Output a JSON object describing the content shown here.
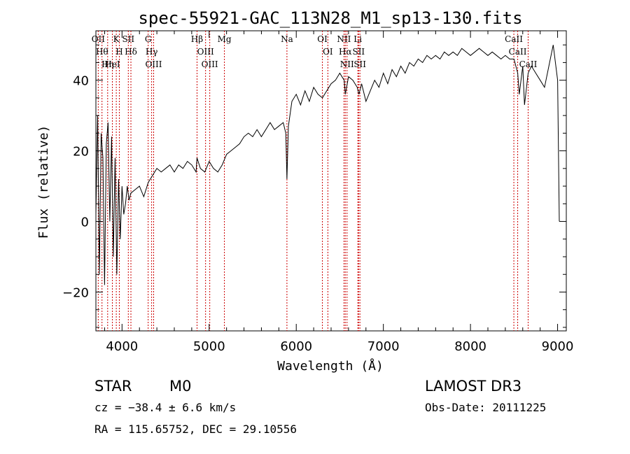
{
  "chart_data": {
    "type": "line",
    "title": "spec-55921-GAC_113N28_M1_sp13-130.fits",
    "xlabel": "Wavelength (Å)",
    "ylabel": "Flux (relative)",
    "xlim": [
      3700,
      9100
    ],
    "ylim": [
      -31,
      54
    ],
    "xticks": [
      4000,
      5000,
      6000,
      7000,
      8000,
      9000
    ],
    "yticks": [
      -20,
      0,
      20,
      40
    ],
    "series": [
      {
        "name": "spectrum",
        "x": [
          3700,
          3720,
          3740,
          3760,
          3780,
          3800,
          3820,
          3840,
          3860,
          3880,
          3900,
          3920,
          3940,
          3960,
          3980,
          4000,
          4020,
          4040,
          4060,
          4080,
          4100,
          4150,
          4200,
          4250,
          4300,
          4350,
          4400,
          4450,
          4500,
          4550,
          4600,
          4650,
          4700,
          4750,
          4800,
          4850,
          4860,
          4900,
          4950,
          5000,
          5050,
          5100,
          5150,
          5200,
          5250,
          5300,
          5350,
          5400,
          5450,
          5500,
          5550,
          5600,
          5650,
          5700,
          5750,
          5800,
          5850,
          5880,
          5893,
          5910,
          5950,
          6000,
          6050,
          6100,
          6150,
          6200,
          6250,
          6300,
          6350,
          6400,
          6450,
          6500,
          6550,
          6563,
          6600,
          6650,
          6700,
          6720,
          6750,
          6800,
          6850,
          6900,
          6950,
          7000,
          7050,
          7100,
          7150,
          7200,
          7250,
          7300,
          7350,
          7400,
          7450,
          7500,
          7550,
          7600,
          7650,
          7700,
          7750,
          7800,
          7850,
          7900,
          7950,
          8000,
          8050,
          8100,
          8150,
          8200,
          8250,
          8300,
          8350,
          8400,
          8450,
          8500,
          8542,
          8560,
          8600,
          8620,
          8662,
          8700,
          8750,
          8800,
          8850,
          8900,
          8950,
          9000,
          9020
        ],
        "y": [
          2,
          30,
          -15,
          25,
          18,
          -18,
          22,
          28,
          0,
          24,
          -10,
          18,
          -15,
          12,
          -5,
          10,
          2,
          5,
          10,
          6,
          8,
          9,
          10,
          7,
          11,
          13,
          15,
          14,
          15,
          16,
          14,
          16,
          15,
          17,
          16,
          14,
          18,
          15,
          14,
          17,
          15,
          14,
          16,
          19,
          20,
          21,
          22,
          24,
          25,
          24,
          26,
          24,
          26,
          28,
          26,
          27,
          28,
          25,
          12,
          27,
          34,
          36,
          33,
          37,
          34,
          38,
          36,
          35,
          37,
          39,
          40,
          42,
          40,
          36,
          41,
          40,
          38,
          36,
          39,
          34,
          37,
          40,
          38,
          42,
          39,
          43,
          41,
          44,
          42,
          45,
          44,
          46,
          45,
          47,
          46,
          47,
          46,
          48,
          47,
          48,
          47,
          49,
          48,
          47,
          48,
          49,
          48,
          47,
          48,
          47,
          46,
          47,
          46,
          46,
          42,
          36,
          44,
          33,
          42,
          44,
          42,
          40,
          38,
          44,
          50,
          40,
          0
        ]
      }
    ],
    "line_markers": [
      {
        "x": 3727,
        "label": "OII"
      },
      {
        "x": 3770,
        "label": "Hθ"
      },
      {
        "x": 3835,
        "label": "Hη"
      },
      {
        "x": 3889,
        "label": "HeI"
      },
      {
        "x": 3934,
        "label": "K"
      },
      {
        "x": 3969,
        "label": "H"
      },
      {
        "x": 4072,
        "label": "SII"
      },
      {
        "x": 4102,
        "label": "Hδ"
      },
      {
        "x": 4300,
        "label": "G"
      },
      {
        "x": 4340,
        "label": "Hγ"
      },
      {
        "x": 4363,
        "label": "OIII"
      },
      {
        "x": 4861,
        "label": "Hβ"
      },
      {
        "x": 4959,
        "label": "OIII"
      },
      {
        "x": 5007,
        "label": "OIII"
      },
      {
        "x": 5175,
        "label": "Mg"
      },
      {
        "x": 5893,
        "label": "Na"
      },
      {
        "x": 6300,
        "label": "OI"
      },
      {
        "x": 6363,
        "label": "OI"
      },
      {
        "x": 6548,
        "label": "NII"
      },
      {
        "x": 6563,
        "label": "Hα"
      },
      {
        "x": 6583,
        "label": "NII"
      },
      {
        "x": 6707,
        "label": "Li"
      },
      {
        "x": 6716,
        "label": "SII"
      },
      {
        "x": 6731,
        "label": "SII"
      },
      {
        "x": 8498,
        "label": "CaII"
      },
      {
        "x": 8542,
        "label": "CaII"
      },
      {
        "x": 8662,
        "label": "CaII"
      }
    ]
  },
  "info": {
    "class_label": "STAR",
    "subclass_label": "M0",
    "redshift": "cz = −38.4 ± 6.6 km/s",
    "coords": "RA = 115.65752, DEC =  29.10556",
    "survey": "LAMOST DR3",
    "obs_date": "Obs-Date: 20111225"
  },
  "colors": {
    "line": "#000000",
    "marker": "#cc0000",
    "background": "#ffffff"
  }
}
